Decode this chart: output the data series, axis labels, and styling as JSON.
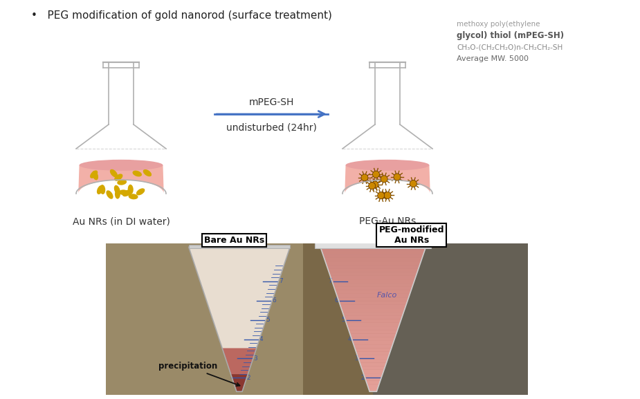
{
  "title_bullet": "•   PEG modification of gold nanorod (surface treatment)",
  "arrow_label_top": "mPEG-SH",
  "arrow_label_bottom": "undisturbed (24hr)",
  "flask_left_label": "Au NRs (in DI water)",
  "flask_right_label": "PEG-Au NRs",
  "mPEG_line1": "methoxy poly(ethylene",
  "mPEG_line2": "glycol) thiol (mPEG-SH)",
  "formula": "CH₃O-(CH₂CH₂O)n-CH₂CH₂-SH",
  "mw": "Average MW. 5000",
  "label_bare": "Bare Au NRs",
  "label_peg": "PEG-modified\nAu NRs",
  "precipitation_label": "precipitation",
  "flask_fill_color": "#f2b0a8",
  "flask_outline_color": "#b0b0b0",
  "bg_color": "#ffffff",
  "arrow_color": "#4472c4",
  "nanorod_color": "#d4a800",
  "peg_nanorod_color": "#cc8800",
  "photo_bg_left": "#a09070",
  "photo_bg_right": "#787060",
  "tube_left_upper": "#ddd0c0",
  "tube_left_precip": "#c07060",
  "tube_right_color": "#cc8878"
}
